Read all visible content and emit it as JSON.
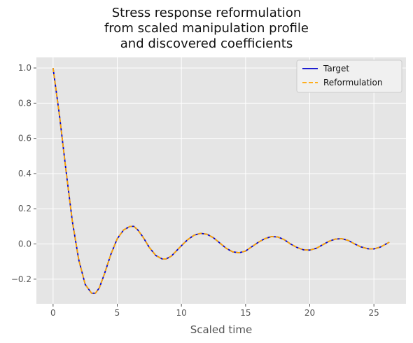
{
  "chart_data": {
    "type": "line",
    "title_lines": [
      "Stress response reformulation",
      "from scaled manipulation profile",
      "and discovered coefficients"
    ],
    "xlabel": "Scaled time",
    "ylabel": "",
    "xlim": [
      -1.3,
      27.5
    ],
    "ylim": [
      -0.34,
      1.06
    ],
    "xticks": [
      0,
      5,
      10,
      15,
      20,
      25
    ],
    "yticks": [
      -0.2,
      0.0,
      0.2,
      0.4,
      0.6,
      0.8,
      1.0
    ],
    "xtick_labels": [
      "0",
      "5",
      "10",
      "15",
      "20",
      "25"
    ],
    "ytick_labels": [
      "−0.2",
      "0.0",
      "0.2",
      "0.4",
      "0.6",
      "0.8",
      "1.0"
    ],
    "grid": true,
    "legend_position": "top-right",
    "background": "#e5e5e5",
    "series": [
      {
        "name": "Target",
        "color": "#0000cd",
        "style": "solid",
        "x": [
          0.0,
          0.5,
          1.0,
          1.5,
          2.0,
          2.5,
          3.0,
          3.3,
          3.6,
          4.0,
          4.5,
          5.0,
          5.5,
          6.0,
          6.3,
          6.6,
          7.0,
          7.5,
          8.0,
          8.5,
          8.8,
          9.2,
          9.6,
          10.0,
          10.5,
          11.0,
          11.5,
          12.0,
          12.5,
          13.0,
          13.5,
          14.0,
          14.5,
          15.0,
          15.5,
          16.0,
          16.5,
          17.0,
          17.5,
          18.0,
          18.5,
          19.0,
          19.5,
          20.0,
          20.5,
          21.0,
          21.5,
          22.0,
          22.5,
          23.0,
          23.5,
          24.0,
          24.5,
          25.0,
          25.5,
          26.2
        ],
        "y": [
          1.0,
          0.73,
          0.42,
          0.13,
          -0.09,
          -0.23,
          -0.28,
          -0.28,
          -0.25,
          -0.17,
          -0.06,
          0.03,
          0.08,
          0.1,
          0.1,
          0.08,
          0.04,
          -0.02,
          -0.065,
          -0.085,
          -0.085,
          -0.07,
          -0.04,
          -0.01,
          0.025,
          0.05,
          0.06,
          0.055,
          0.035,
          0.005,
          -0.025,
          -0.045,
          -0.05,
          -0.04,
          -0.015,
          0.01,
          0.03,
          0.042,
          0.04,
          0.025,
          0.0,
          -0.02,
          -0.033,
          -0.035,
          -0.025,
          -0.005,
          0.015,
          0.028,
          0.03,
          0.02,
          0.0,
          -0.017,
          -0.027,
          -0.028,
          -0.018,
          0.01
        ]
      },
      {
        "name": "Reformulation",
        "color": "#ffa500",
        "style": "dashed",
        "x": [
          0.0,
          0.5,
          1.0,
          1.5,
          2.0,
          2.5,
          3.0,
          3.3,
          3.6,
          4.0,
          4.5,
          5.0,
          5.5,
          6.0,
          6.3,
          6.6,
          7.0,
          7.5,
          8.0,
          8.5,
          8.8,
          9.2,
          9.6,
          10.0,
          10.5,
          11.0,
          11.5,
          12.0,
          12.5,
          13.0,
          13.5,
          14.0,
          14.5,
          15.0,
          15.5,
          16.0,
          16.5,
          17.0,
          17.5,
          18.0,
          18.5,
          19.0,
          19.5,
          20.0,
          20.5,
          21.0,
          21.5,
          22.0,
          22.5,
          23.0,
          23.5,
          24.0,
          24.5,
          25.0,
          25.5,
          26.2
        ],
        "y": [
          1.0,
          0.73,
          0.42,
          0.13,
          -0.09,
          -0.23,
          -0.28,
          -0.28,
          -0.25,
          -0.17,
          -0.06,
          0.03,
          0.08,
          0.1,
          0.1,
          0.08,
          0.04,
          -0.02,
          -0.065,
          -0.085,
          -0.085,
          -0.07,
          -0.04,
          -0.01,
          0.025,
          0.05,
          0.06,
          0.055,
          0.035,
          0.005,
          -0.025,
          -0.045,
          -0.05,
          -0.04,
          -0.015,
          0.01,
          0.03,
          0.042,
          0.04,
          0.025,
          0.0,
          -0.02,
          -0.033,
          -0.035,
          -0.025,
          -0.005,
          0.015,
          0.028,
          0.03,
          0.02,
          0.0,
          -0.017,
          -0.027,
          -0.028,
          -0.018,
          0.01
        ]
      }
    ]
  }
}
